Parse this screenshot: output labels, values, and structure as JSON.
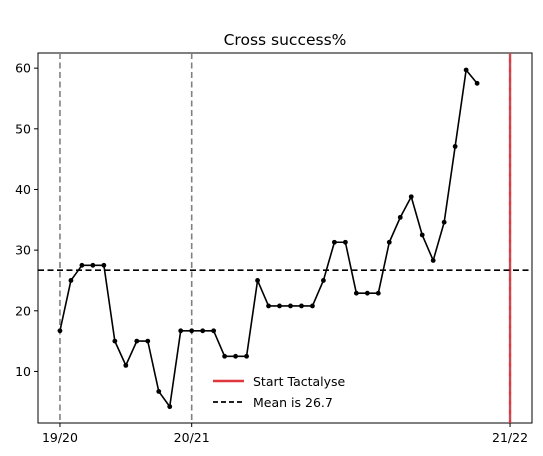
{
  "chart_data": {
    "type": "line",
    "title": "Cross success%",
    "xlabel": "",
    "ylabel": "",
    "x_tick_labels": [
      {
        "x": 0,
        "label": "19/20"
      },
      {
        "x": 12,
        "label": "20/21"
      },
      {
        "x": 41,
        "label": "21/22"
      }
    ],
    "y_ticks": [
      10,
      20,
      30,
      40,
      50,
      60
    ],
    "xlim": [
      -2,
      43
    ],
    "ylim": [
      1.5,
      62.5
    ],
    "season_markers": [
      0,
      12
    ],
    "start_marker": 41,
    "series": [
      {
        "x": [
          0,
          1,
          2,
          3,
          4,
          5,
          6,
          7,
          8,
          9,
          10,
          11,
          12,
          13,
          14,
          15,
          16,
          17,
          18,
          19,
          20,
          21,
          22,
          23,
          24,
          25,
          26,
          27,
          28,
          29,
          30,
          31,
          32,
          33,
          34,
          35,
          36,
          37,
          38
        ],
        "values": [
          16.7,
          25.0,
          27.5,
          27.5,
          27.5,
          15.0,
          11.0,
          15.0,
          15.0,
          6.7,
          4.2,
          16.7,
          16.7,
          16.7,
          16.7,
          12.5,
          12.5,
          12.5,
          25.0,
          20.8,
          20.8,
          20.8,
          20.8,
          20.8,
          25.0,
          31.3,
          31.3,
          22.9,
          22.9,
          22.9,
          31.3,
          35.4,
          38.8,
          32.5,
          28.3,
          34.6,
          47.1,
          59.7,
          57.5
        ]
      }
    ],
    "mean_line": 26.7,
    "legend": {
      "placement": "lower-center",
      "entries": [
        {
          "label": "Start Tactalyse",
          "style": "solid",
          "color": "#e0373f"
        },
        {
          "label": "Mean is 26.7",
          "style": "dashed",
          "color": "#000000"
        }
      ]
    },
    "colors": {
      "line": "#000000",
      "season_marker": "#808080",
      "start_marker": "#e0373f",
      "mean": "#000000"
    }
  }
}
